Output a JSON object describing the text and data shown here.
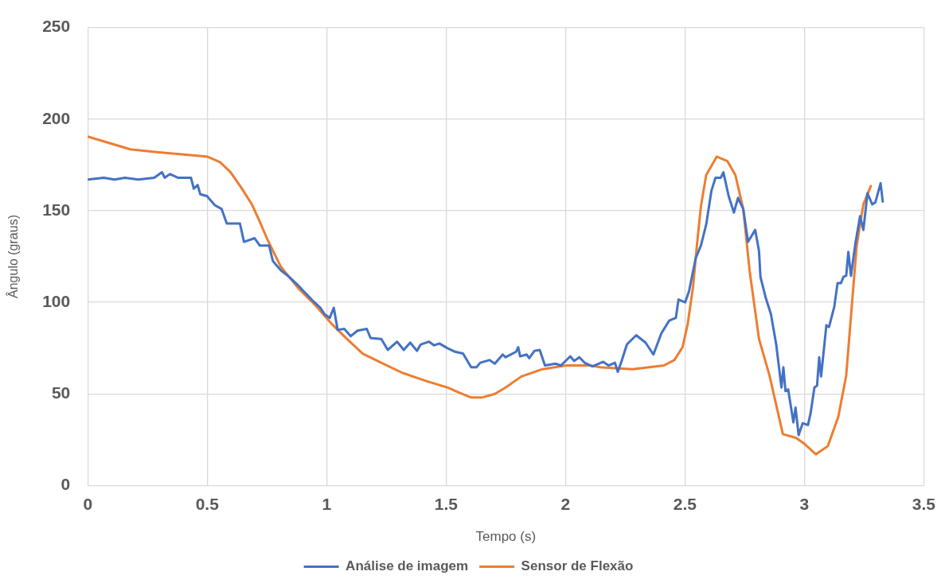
{
  "chart_data": {
    "type": "line",
    "xlabel": "Tempo (s)",
    "ylabel": "Ângulo (graus)",
    "xlim": [
      0,
      3.5
    ],
    "ylim": [
      0,
      250
    ],
    "xticks": [
      0,
      0.5,
      1,
      1.5,
      2,
      2.5,
      3,
      3.5
    ],
    "yticks": [
      0,
      50,
      100,
      150,
      200,
      250
    ],
    "grid": true,
    "legend": "bottom",
    "marker": "none",
    "line_style": "solid",
    "series": [
      {
        "name": "Análise de imagem",
        "color": "#4472c4",
        "x": [
          0,
          0.067,
          0.112,
          0.156,
          0.211,
          0.278,
          0.311,
          0.322,
          0.344,
          0.377,
          0.432,
          0.444,
          0.46,
          0.471,
          0.499,
          0.532,
          0.56,
          0.582,
          0.637,
          0.654,
          0.698,
          0.72,
          0.759,
          0.775,
          0.808,
          0.842,
          0.875,
          0.908,
          0.941,
          0.974,
          0.991,
          1.013,
          1.03,
          1.046,
          1.074,
          1.101,
          1.129,
          1.168,
          1.184,
          1.229,
          1.256,
          1.295,
          1.323,
          1.35,
          1.378,
          1.394,
          1.428,
          1.45,
          1.472,
          1.505,
          1.538,
          1.571,
          1.605,
          1.627,
          1.643,
          1.682,
          1.704,
          1.737,
          1.749,
          1.793,
          1.802,
          1.81,
          1.837,
          1.848,
          1.87,
          1.892,
          1.914,
          1.958,
          1.981,
          2.02,
          2.036,
          2.058,
          2.08,
          2.113,
          2.158,
          2.18,
          2.207,
          2.219,
          2.235,
          2.257,
          2.296,
          2.335,
          2.368,
          2.401,
          2.434,
          2.462,
          2.473,
          2.501,
          2.517,
          2.545,
          2.567,
          2.589,
          2.611,
          2.628,
          2.65,
          2.661,
          2.683,
          2.705,
          2.722,
          2.744,
          2.764,
          2.794,
          2.81,
          2.816,
          2.838,
          2.86,
          2.882,
          2.904,
          2.912,
          2.921,
          2.932,
          2.954,
          2.963,
          2.976,
          2.993,
          3.015,
          3.026,
          3.042,
          3.053,
          3.062,
          3.07,
          3.092,
          3.103,
          3.125,
          3.139,
          3.153,
          3.164,
          3.175,
          3.184,
          3.195,
          3.214,
          3.233,
          3.247,
          3.264,
          3.284,
          3.297,
          3.319,
          3.328
        ],
        "values": [
          167,
          168,
          167,
          168,
          167,
          168,
          171,
          168,
          170,
          168,
          168,
          162,
          164,
          159,
          158,
          153,
          151,
          143,
          143,
          133,
          135,
          131,
          131,
          122.5,
          117.5,
          114,
          110,
          105.5,
          101,
          97,
          93.5,
          91.5,
          97,
          85,
          85.5,
          81.5,
          84.5,
          85.5,
          80.5,
          80,
          74,
          78.5,
          74,
          78,
          73.5,
          77,
          78.5,
          76.5,
          77.5,
          75,
          73,
          72,
          64.5,
          64.5,
          67,
          68.5,
          66.5,
          71.5,
          70,
          73,
          75.5,
          70.5,
          71.5,
          69.5,
          73.5,
          74,
          65.5,
          66.5,
          65.5,
          70.5,
          68,
          70,
          67,
          65,
          67.5,
          65.5,
          67,
          62,
          68,
          77,
          82,
          78,
          71.5,
          83,
          90,
          91.5,
          101.5,
          100,
          106,
          124,
          131,
          142.5,
          161,
          168,
          168,
          171,
          158,
          149,
          157,
          151,
          133,
          139.5,
          128,
          114,
          102.5,
          93.5,
          77,
          53.5,
          64.5,
          51.5,
          52.5,
          34.5,
          42.5,
          27.5,
          34,
          33,
          39.5,
          53.5,
          54.5,
          70,
          59.5,
          87.5,
          86.5,
          97.5,
          110.5,
          110.5,
          114,
          114.5,
          127.5,
          114.5,
          132.5,
          147,
          139.5,
          159.5,
          153.5,
          154.5,
          165,
          155
        ]
      },
      {
        "name": "Sensor de Flexão",
        "color": "#ed7d31",
        "x": [
          0,
          0.178,
          0.289,
          0.42,
          0.5,
          0.554,
          0.598,
          0.643,
          0.687,
          0.72,
          0.753,
          0.808,
          0.886,
          0.952,
          1.019,
          1.085,
          1.151,
          1.229,
          1.317,
          1.417,
          1.505,
          1.549,
          1.605,
          1.649,
          1.704,
          1.749,
          1.815,
          1.903,
          2.003,
          2.102,
          2.147,
          2.28,
          2.412,
          2.456,
          2.49,
          2.512,
          2.534,
          2.55,
          2.567,
          2.589,
          2.633,
          2.678,
          2.711,
          2.744,
          2.771,
          2.81,
          2.854,
          2.91,
          2.965,
          2.998,
          3.048,
          3.098,
          3.142,
          3.175,
          3.197,
          3.219,
          3.247,
          3.278
        ],
        "values": [
          190.5,
          183.5,
          182,
          180.5,
          179.5,
          176.5,
          171,
          162.5,
          153.5,
          144,
          134,
          119.5,
          107,
          98.5,
          88.5,
          80,
          72,
          67,
          61.5,
          57,
          53.5,
          51,
          48,
          48,
          50,
          53.5,
          59.5,
          63.5,
          65.5,
          65.5,
          64.5,
          63.5,
          65.5,
          68.5,
          75.5,
          88.5,
          108.5,
          131,
          152.5,
          169.5,
          179.5,
          177,
          169.5,
          151,
          117,
          80,
          60,
          28,
          26,
          23,
          17,
          21.5,
          37.5,
          60,
          95.5,
          131,
          153.5,
          163.5
        ]
      }
    ]
  }
}
